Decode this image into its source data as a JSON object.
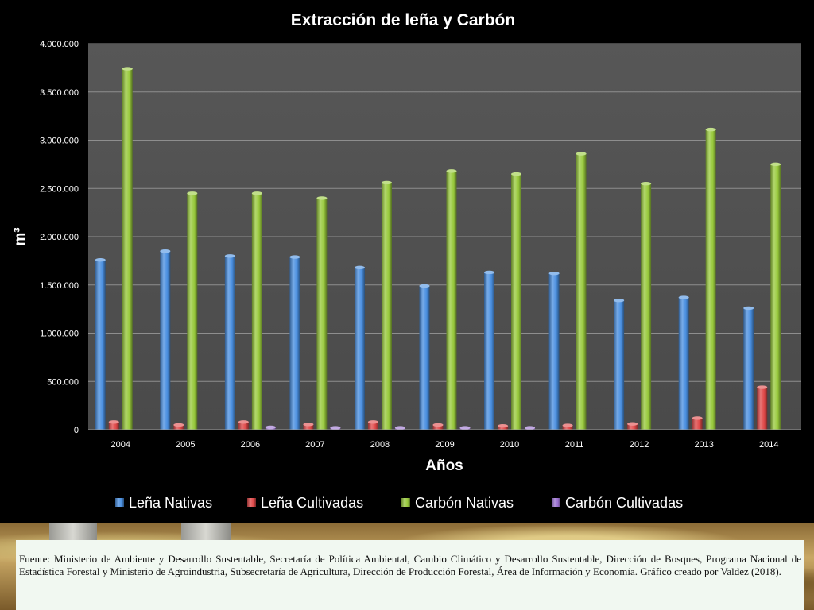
{
  "chart_data": {
    "type": "bar",
    "title": "Extracción de leña y Carbón",
    "xlabel": "Años",
    "ylabel": "m³",
    "ylim": [
      0,
      4000000
    ],
    "yticks": [
      0,
      500000,
      1000000,
      1500000,
      2000000,
      2500000,
      3000000,
      3500000,
      4000000
    ],
    "ytick_labels": [
      "0",
      "500.000",
      "1.000.000",
      "1.500.000",
      "2.000.000",
      "2.500.000",
      "3.000.000",
      "3.500.000",
      "4.000.000"
    ],
    "grid": true,
    "legend_position": "bottom",
    "categories": [
      "2004",
      "2005",
      "2006",
      "2007",
      "2008",
      "2009",
      "2010",
      "2011",
      "2012",
      "2013",
      "2014"
    ],
    "series": [
      {
        "name": "Leña Nativas",
        "color": "#4a8fe0",
        "values": [
          1760000,
          1850000,
          1800000,
          1790000,
          1680000,
          1490000,
          1630000,
          1620000,
          1340000,
          1370000,
          1260000
        ]
      },
      {
        "name": "Leña Cultivadas",
        "color": "#e04848",
        "values": [
          80000,
          50000,
          80000,
          55000,
          80000,
          50000,
          40000,
          45000,
          60000,
          120000,
          440000
        ]
      },
      {
        "name": "Carbón Nativas",
        "color": "#98c93c",
        "values": [
          3740000,
          2450000,
          2450000,
          2400000,
          2560000,
          2680000,
          2650000,
          2860000,
          2550000,
          3110000,
          2750000
        ]
      },
      {
        "name": "Carbón Cultivadas",
        "color": "#9a6fd0",
        "values": [
          0,
          0,
          25000,
          20000,
          20000,
          20000,
          20000,
          0,
          0,
          0,
          0
        ]
      }
    ]
  },
  "source": {
    "text": "Fuente: Ministerio de Ambiente y Desarrollo Sustentable, Secretaría de Política Ambiental, Cambio Climático y Desarrollo Sustentable, Dirección de Bosques, Programa Nacional de Estadística Forestal y Ministerio de Agroindustria, Subsecretaría de Agricultura, Dirección de Producción Forestal,  Área de Información y Economía. Gráfico creado por Valdez (2018)."
  }
}
